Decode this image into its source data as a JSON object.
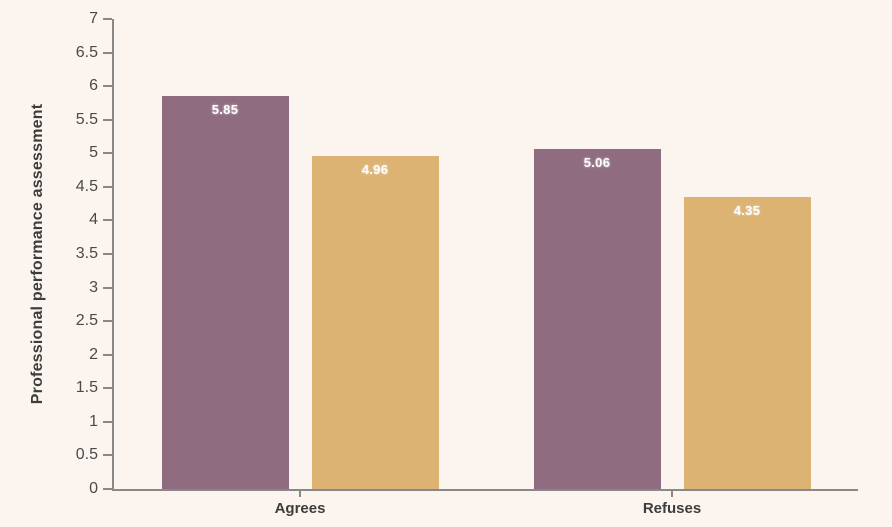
{
  "chart_data": {
    "type": "bar",
    "title": "",
    "xlabel": "",
    "ylabel": "Professional performance assessment",
    "categories": [
      "Agrees",
      "Refuses"
    ],
    "series": [
      {
        "name": "purple",
        "color": "#8F6C80",
        "values": [
          5.85,
          5.06
        ]
      },
      {
        "name": "gold",
        "color": "#DCB373",
        "values": [
          4.96,
          4.35
        ]
      }
    ],
    "value_labels": [
      "5.85",
      "4.96",
      "5.06",
      "4.35"
    ],
    "ylim": [
      0,
      7
    ],
    "yticks": [
      0,
      0.5,
      1,
      1.5,
      2,
      2.5,
      3,
      3.5,
      4,
      4.5,
      5,
      5.5,
      6,
      6.5,
      7
    ],
    "grid": false,
    "legend": "none",
    "value_label_position": "inside-top",
    "colors": {
      "background": "#FCF5EF",
      "axis": "#888888",
      "tick_label": "#4A4A4A",
      "category_label": "#3D3D3D",
      "axis_title": "#3D3D3D",
      "value_label": "#FFFFFF"
    }
  }
}
